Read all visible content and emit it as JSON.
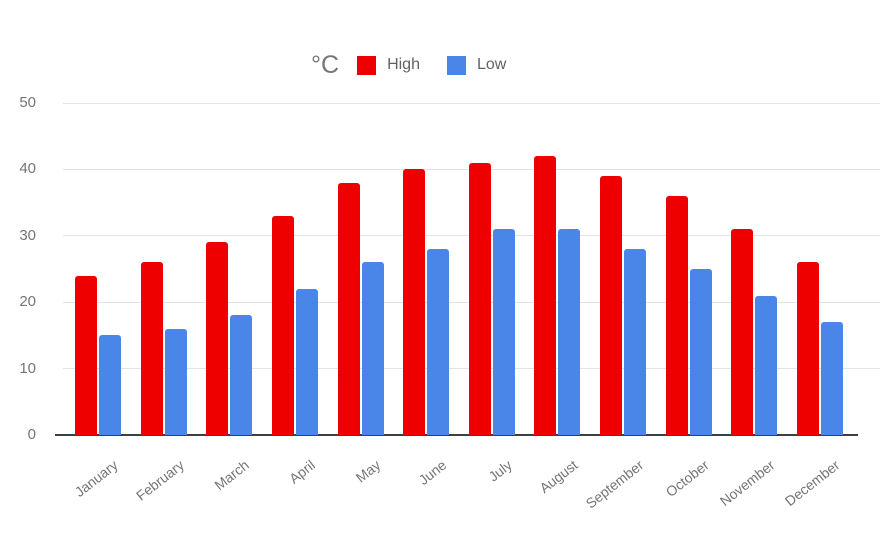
{
  "chart_data": {
    "type": "bar",
    "title": "°C",
    "categories": [
      "January",
      "February",
      "March",
      "April",
      "May",
      "June",
      "July",
      "August",
      "September",
      "October",
      "November",
      "December"
    ],
    "series": [
      {
        "name": "High",
        "color": "#ee0000",
        "values": [
          24,
          26,
          29,
          33,
          38,
          40,
          41,
          42,
          39,
          36,
          31,
          26
        ]
      },
      {
        "name": "Low",
        "color": "#4a86e8",
        "values": [
          15,
          16,
          18,
          22,
          26,
          28,
          31,
          31,
          28,
          25,
          21,
          17
        ]
      }
    ],
    "xlabel": "",
    "ylabel": "",
    "ylim": [
      0,
      50
    ],
    "yticks": [
      0,
      10,
      20,
      30,
      40,
      50
    ],
    "grid": true,
    "legend_position": "top"
  },
  "colors": {
    "background": "#ffffff",
    "gridline": "#e3e3e3",
    "axis_baseline": "#3c4043",
    "tick_text": "#757575",
    "legend_text": "#5f6368"
  }
}
